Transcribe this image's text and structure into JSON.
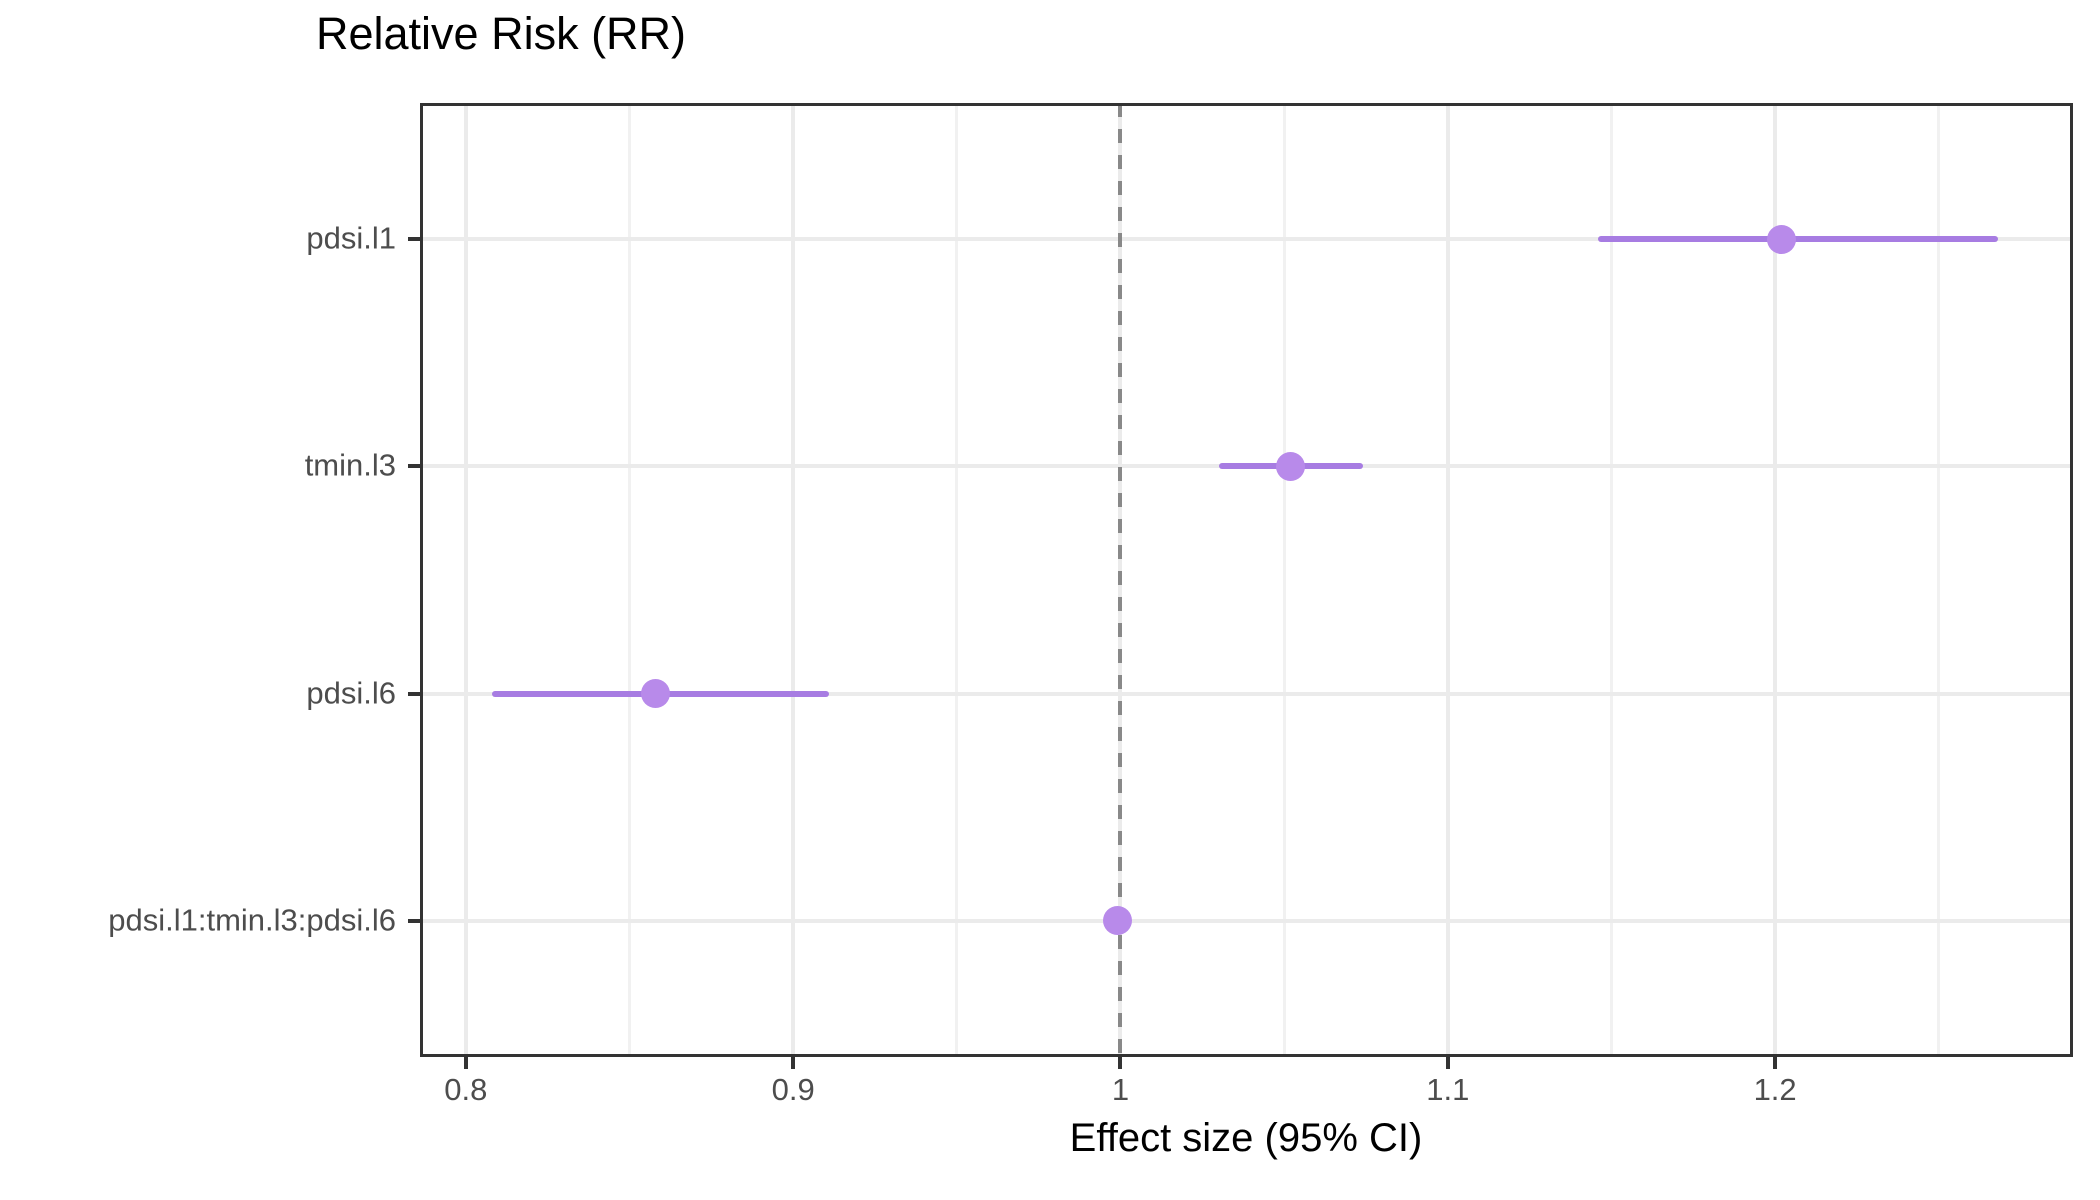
{
  "chart_data": {
    "type": "scatter",
    "subtype": "forest-plot-pointrange",
    "title": "Relative Risk (RR)",
    "xlabel": "Effect size (95% CI)",
    "ylabel": "",
    "categories": [
      "pdsi.l1",
      "tmin.l3",
      "pdsi.l6",
      "pdsi.l1:tmin.l3:pdsi.l6"
    ],
    "points": [
      {
        "label": "pdsi.l1",
        "estimate": 1.202,
        "ci_low": 1.146,
        "ci_high": 1.268
      },
      {
        "label": "tmin.l3",
        "estimate": 1.052,
        "ci_low": 1.03,
        "ci_high": 1.074
      },
      {
        "label": "pdsi.l6",
        "estimate": 0.858,
        "ci_low": 0.808,
        "ci_high": 0.911
      },
      {
        "label": "pdsi.l1:tmin.l3:pdsi.l6",
        "estimate": 0.999,
        "ci_low": 0.995,
        "ci_high": 1.003
      }
    ],
    "x_ticks": [
      0.8,
      0.9,
      1.0,
      1.1,
      1.2
    ],
    "x_tick_labels": [
      "0.8",
      "0.9",
      "1",
      "1.1",
      "1.2"
    ],
    "x_minor_ticks": [
      0.85,
      0.95,
      1.05,
      1.15,
      1.25
    ],
    "xlim": [
      0.786,
      1.291
    ],
    "reference_line": 1.0,
    "grid": true,
    "legend": "none"
  },
  "style": {
    "point_color": "#B88AEA",
    "ci_line_color": "#A77CE2",
    "reference_line_color": "#898989",
    "grid_major_color": "#EBEBEB",
    "grid_minor_color": "#F1F1F1",
    "panel_border_color": "#333333",
    "tick_color": "#333333",
    "tick_label_color": "#4D4D4D",
    "title_color": "#000000",
    "background_color": "#FFFFFF"
  }
}
